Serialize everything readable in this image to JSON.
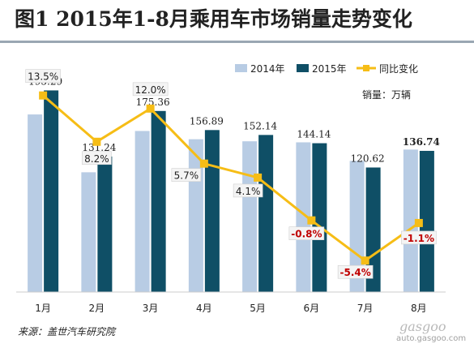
{
  "title": "图1  2015年1-8月乘用车市场销量走势变化",
  "unit_label": "销量：万辆",
  "source": "来源：盖世汽车研究院",
  "watermark": {
    "logo": "gasgoo",
    "url": "auto.gasgoo.com"
  },
  "colors": {
    "s2014": "#b8cce4",
    "s2015": "#0f4f66",
    "yoy": "#f6bd16",
    "negative_label": "#c00000",
    "axis": "#cccccc"
  },
  "chart_data": {
    "type": "bar",
    "categories": [
      "1月",
      "2月",
      "3月",
      "4月",
      "5月",
      "6月",
      "7月",
      "8月"
    ],
    "ylim": [
      0,
      220
    ],
    "series": [
      {
        "name": "2014年",
        "values": [
          172,
          116,
          156,
          148,
          146,
          145,
          127,
          138
        ]
      },
      {
        "name": "2015年",
        "values": [
          195.29,
          131.24,
          175.36,
          156.89,
          152.14,
          144.14,
          120.62,
          136.74
        ],
        "labels": [
          "195.29",
          "131.24",
          "175.36",
          "156.89",
          "152.14",
          "144.14",
          "120.62",
          "136.74"
        ]
      }
    ],
    "line": {
      "name": "同比变化",
      "values": [
        13.5,
        8.2,
        12.0,
        5.7,
        4.1,
        -0.8,
        -5.4,
        -1.1
      ],
      "labels": [
        "13.5%",
        "8.2%",
        "12.0%",
        "5.7%",
        "4.1%",
        "-0.8%",
        "-5.4%",
        "-1.1%"
      ],
      "ylim": [
        -9,
        17
      ]
    },
    "legend": "top-right"
  }
}
